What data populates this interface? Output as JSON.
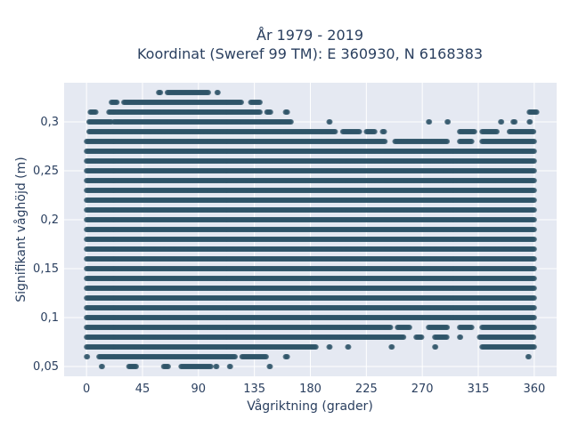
{
  "chart_data": {
    "type": "scatter",
    "title_line1": "År 1979 - 2019",
    "title_line2": "Koordinat (Sweref 99 TM): E 360930, N 6168383",
    "xlabel": "Vågriktning (grader)",
    "ylabel": "Signifikant våghöjd (m)",
    "xlim": [
      -18,
      378
    ],
    "ylim": [
      0.04,
      0.34
    ],
    "x_ticks": [
      0,
      45,
      90,
      135,
      180,
      225,
      270,
      315,
      360
    ],
    "x_tick_labels": [
      "0",
      "45",
      "90",
      "135",
      "180",
      "225",
      "270",
      "315",
      "360"
    ],
    "y_ticks": [
      0.05,
      0.1,
      0.15,
      0.2,
      0.25,
      0.3
    ],
    "y_tick_labels": [
      "0,05",
      "0,1",
      "0,15",
      "0,2",
      "0,25",
      "0,3"
    ],
    "grid": true,
    "colors": {
      "marker": "#2f5468",
      "plot_bg": "#e5e9f2",
      "grid": "#ffffff",
      "text": "#2a3f5f"
    },
    "bands": [
      {
        "y": 0.05,
        "ranges": [
          [
            12,
            13
          ],
          [
            34,
            40
          ],
          [
            62,
            66
          ],
          [
            76,
            100
          ],
          [
            104,
            105
          ],
          [
            115,
            116
          ],
          [
            147,
            148
          ]
        ]
      },
      {
        "y": 0.06,
        "ranges": [
          [
            0,
            1
          ],
          [
            10,
            120
          ],
          [
            125,
            145
          ],
          [
            160,
            162
          ],
          [
            355,
            356
          ]
        ]
      },
      {
        "y": 0.07,
        "ranges": [
          [
            0,
            185
          ],
          [
            195,
            196
          ],
          [
            210,
            211
          ],
          [
            245,
            246
          ],
          [
            280,
            281
          ],
          [
            318,
            360
          ]
        ]
      },
      {
        "y": 0.08,
        "ranges": [
          [
            0,
            255
          ],
          [
            265,
            270
          ],
          [
            280,
            290
          ],
          [
            300,
            301
          ],
          [
            316,
            360
          ]
        ]
      },
      {
        "y": 0.09,
        "ranges": [
          [
            0,
            245
          ],
          [
            250,
            260
          ],
          [
            275,
            290
          ],
          [
            300,
            310
          ],
          [
            318,
            360
          ]
        ]
      },
      {
        "y": 0.1,
        "ranges": [
          [
            0,
            360
          ]
        ]
      },
      {
        "y": 0.11,
        "ranges": [
          [
            0,
            360
          ]
        ]
      },
      {
        "y": 0.12,
        "ranges": [
          [
            0,
            360
          ]
        ]
      },
      {
        "y": 0.13,
        "ranges": [
          [
            0,
            360
          ]
        ]
      },
      {
        "y": 0.14,
        "ranges": [
          [
            0,
            360
          ]
        ]
      },
      {
        "y": 0.15,
        "ranges": [
          [
            0,
            360
          ]
        ]
      },
      {
        "y": 0.16,
        "ranges": [
          [
            0,
            360
          ]
        ]
      },
      {
        "y": 0.17,
        "ranges": [
          [
            0,
            360
          ]
        ]
      },
      {
        "y": 0.18,
        "ranges": [
          [
            0,
            360
          ]
        ]
      },
      {
        "y": 0.19,
        "ranges": [
          [
            0,
            360
          ]
        ]
      },
      {
        "y": 0.2,
        "ranges": [
          [
            0,
            360
          ]
        ]
      },
      {
        "y": 0.21,
        "ranges": [
          [
            0,
            360
          ]
        ]
      },
      {
        "y": 0.22,
        "ranges": [
          [
            0,
            360
          ]
        ]
      },
      {
        "y": 0.23,
        "ranges": [
          [
            0,
            360
          ]
        ]
      },
      {
        "y": 0.24,
        "ranges": [
          [
            0,
            360
          ]
        ]
      },
      {
        "y": 0.25,
        "ranges": [
          [
            0,
            360
          ]
        ]
      },
      {
        "y": 0.26,
        "ranges": [
          [
            0,
            360
          ]
        ]
      },
      {
        "y": 0.27,
        "ranges": [
          [
            0,
            360
          ]
        ]
      },
      {
        "y": 0.28,
        "ranges": [
          [
            0,
            240
          ],
          [
            248,
            290
          ],
          [
            300,
            310
          ],
          [
            318,
            360
          ]
        ]
      },
      {
        "y": 0.29,
        "ranges": [
          [
            2,
            200
          ],
          [
            206,
            220
          ],
          [
            225,
            232
          ],
          [
            238,
            240
          ],
          [
            300,
            312
          ],
          [
            318,
            330
          ],
          [
            340,
            360
          ]
        ]
      },
      {
        "y": 0.3,
        "ranges": [
          [
            2,
            20
          ],
          [
            22,
            165
          ],
          [
            195,
            196
          ],
          [
            275,
            276
          ],
          [
            290,
            291
          ],
          [
            333,
            334
          ],
          [
            343,
            345
          ],
          [
            356,
            357
          ]
        ]
      },
      {
        "y": 0.31,
        "ranges": [
          [
            3,
            8
          ],
          [
            18,
            140
          ],
          [
            145,
            148
          ],
          [
            160,
            162
          ],
          [
            356,
            362
          ]
        ]
      },
      {
        "y": 0.32,
        "ranges": [
          [
            20,
            25
          ],
          [
            30,
            125
          ],
          [
            132,
            140
          ]
        ]
      },
      {
        "y": 0.33,
        "ranges": [
          [
            58,
            60
          ],
          [
            65,
            98
          ],
          [
            105,
            106
          ]
        ]
      }
    ]
  }
}
